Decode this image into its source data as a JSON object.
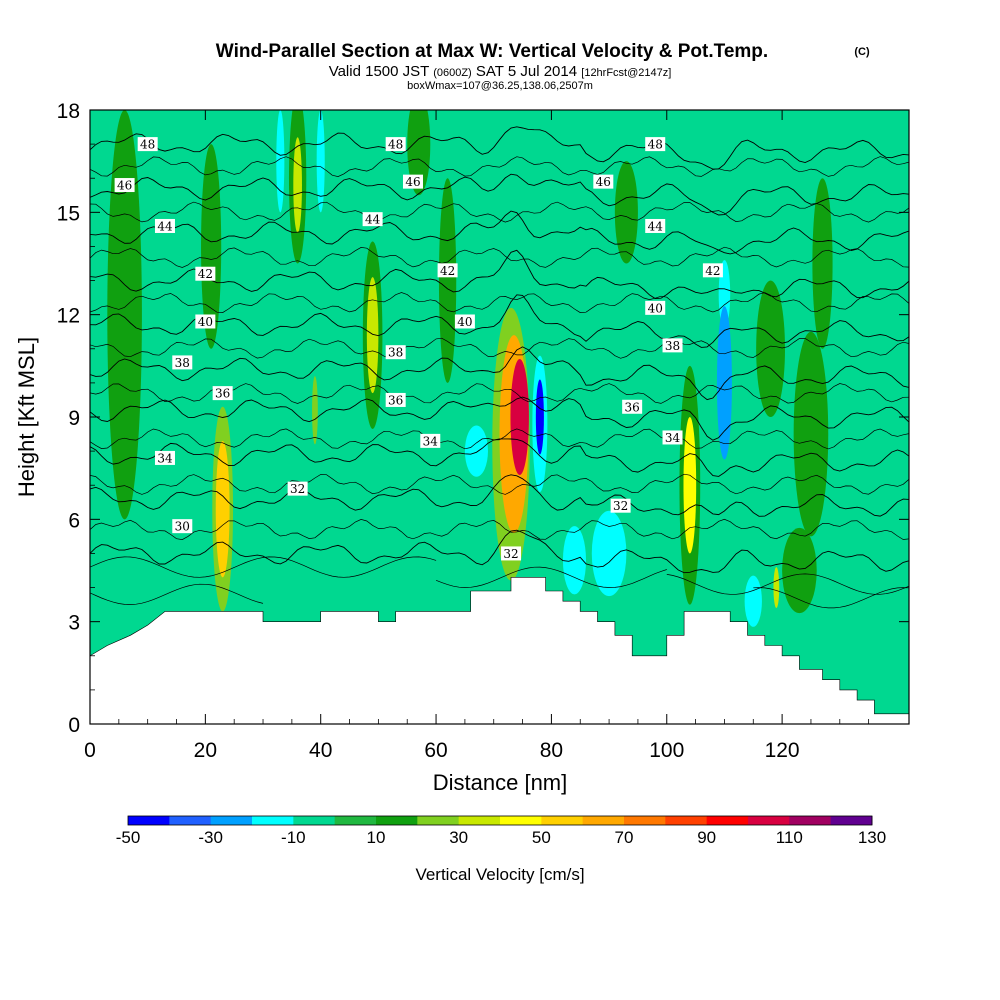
{
  "header": {
    "title": "Wind-Parallel Section at Max W: Vertical Velocity & Pot.Temp.",
    "title_mark": "(C)",
    "subtitle_parts": [
      "Valid 1500 JST",
      "(0600Z)",
      "SAT 5 Jul 2014",
      "[12hrFcst@2147z]"
    ],
    "box_info": "boxWmax=107@36.25,138.06,2507m"
  },
  "chart_data": {
    "type": "heatmap",
    "xlabel": "Distance [nm]",
    "ylabel": "Height [Kft MSL]",
    "xlim": [
      0,
      142
    ],
    "ylim": [
      0,
      18
    ],
    "x_ticks": [
      0,
      20,
      40,
      60,
      80,
      100,
      120
    ],
    "y_ticks": [
      0,
      3,
      6,
      9,
      12,
      15,
      18
    ],
    "colorbar": {
      "label": "Vertical Velocity [cm/s]",
      "levels": [
        -50,
        -30,
        -10,
        10,
        30,
        50,
        70,
        90,
        110,
        130
      ],
      "colors": [
        "#0000ff",
        "#2060ff",
        "#00a0ff",
        "#00ffff",
        "#00d890",
        "#20b840",
        "#10a010",
        "#80d020",
        "#c8e800",
        "#ffff00",
        "#ffd000",
        "#ffa800",
        "#ff7800",
        "#ff4000",
        "#ff0000",
        "#d80040",
        "#a00060",
        "#600090"
      ]
    },
    "base_field_color": "#00d890",
    "terrain": [
      [
        0,
        2.0
      ],
      [
        3,
        2.3
      ],
      [
        7,
        2.6
      ],
      [
        10,
        2.9
      ],
      [
        13,
        3.3
      ],
      [
        30,
        3.3
      ],
      [
        30,
        3.0
      ],
      [
        40,
        3.0
      ],
      [
        40,
        3.3
      ],
      [
        50,
        3.3
      ],
      [
        50,
        3.0
      ],
      [
        53,
        3.0
      ],
      [
        53,
        3.3
      ],
      [
        66,
        3.3
      ],
      [
        66,
        3.9
      ],
      [
        73,
        3.9
      ],
      [
        73,
        4.3
      ],
      [
        79,
        4.3
      ],
      [
        79,
        3.9
      ],
      [
        82,
        3.9
      ],
      [
        82,
        3.6
      ],
      [
        85,
        3.6
      ],
      [
        85,
        3.3
      ],
      [
        88,
        3.3
      ],
      [
        88,
        3.0
      ],
      [
        91,
        3.0
      ],
      [
        91,
        2.6
      ],
      [
        94,
        2.6
      ],
      [
        94,
        2.0
      ],
      [
        100,
        2.0
      ],
      [
        100,
        2.6
      ],
      [
        103,
        2.6
      ],
      [
        103,
        3.3
      ],
      [
        111,
        3.3
      ],
      [
        111,
        3.0
      ],
      [
        114,
        3.0
      ],
      [
        114,
        2.6
      ],
      [
        117,
        2.6
      ],
      [
        117,
        2.3
      ],
      [
        120,
        2.3
      ],
      [
        120,
        2.0
      ],
      [
        123,
        2.0
      ],
      [
        123,
        1.6
      ],
      [
        127,
        1.6
      ],
      [
        127,
        1.3
      ],
      [
        130,
        1.3
      ],
      [
        130,
        1.0
      ],
      [
        133,
        1.0
      ],
      [
        133,
        0.7
      ],
      [
        136,
        0.7
      ],
      [
        136,
        0.3
      ],
      [
        142,
        0.3
      ]
    ],
    "w_features": [
      {
        "x": 74.5,
        "y": 9.0,
        "w": 3.2,
        "h": 3.4,
        "v": 107
      },
      {
        "x": 73.5,
        "y": 8.5,
        "w": 5.0,
        "h": 5.8,
        "v": 60
      },
      {
        "x": 73.0,
        "y": 8.2,
        "w": 6.5,
        "h": 8.0,
        "v": 25
      },
      {
        "x": 78.0,
        "y": 9.0,
        "w": 1.4,
        "h": 2.2,
        "v": -45
      },
      {
        "x": 78.0,
        "y": 8.8,
        "w": 2.6,
        "h": 4.0,
        "v": -20
      },
      {
        "x": 23.0,
        "y": 6.3,
        "w": 2.4,
        "h": 4.0,
        "v": 55
      },
      {
        "x": 23.0,
        "y": 6.3,
        "w": 3.6,
        "h": 6.0,
        "v": 20
      },
      {
        "x": 104.0,
        "y": 7.0,
        "w": 2.2,
        "h": 4.0,
        "v": 45
      },
      {
        "x": 104.0,
        "y": 7.0,
        "w": 3.6,
        "h": 7.0,
        "v": 18
      },
      {
        "x": 49.0,
        "y": 11.4,
        "w": 2.0,
        "h": 3.4,
        "v": 35
      },
      {
        "x": 49.0,
        "y": 11.4,
        "w": 3.4,
        "h": 5.5,
        "v": 12
      },
      {
        "x": 36.0,
        "y": 15.8,
        "w": 1.5,
        "h": 2.8,
        "v": 30
      },
      {
        "x": 36.0,
        "y": 16.0,
        "w": 3.0,
        "h": 5.0,
        "v": 12
      },
      {
        "x": 110.0,
        "y": 10.0,
        "w": 2.6,
        "h": 4.5,
        "v": -30
      },
      {
        "x": 110.0,
        "y": 12.6,
        "w": 2.0,
        "h": 2.0,
        "v": -15
      },
      {
        "x": 33.0,
        "y": 16.5,
        "w": 1.4,
        "h": 3.0,
        "v": -15
      },
      {
        "x": 40.0,
        "y": 16.5,
        "w": 1.4,
        "h": 3.0,
        "v": -15
      },
      {
        "x": 90.0,
        "y": 5.0,
        "w": 6.0,
        "h": 2.5,
        "v": -16
      },
      {
        "x": 84.0,
        "y": 4.8,
        "w": 4.0,
        "h": 2.0,
        "v": -14
      },
      {
        "x": 67.0,
        "y": 8.0,
        "w": 4.0,
        "h": 1.5,
        "v": -14
      },
      {
        "x": 115.0,
        "y": 3.6,
        "w": 3.0,
        "h": 1.5,
        "v": -14
      },
      {
        "x": 6.0,
        "y": 12.0,
        "w": 6.0,
        "h": 12.0,
        "v": 14
      },
      {
        "x": 57.0,
        "y": 17.0,
        "w": 4.0,
        "h": 3.0,
        "v": 14
      },
      {
        "x": 62.0,
        "y": 13.0,
        "w": 3.0,
        "h": 6.0,
        "v": 12
      },
      {
        "x": 127.0,
        "y": 13.5,
        "w": 3.5,
        "h": 5.0,
        "v": 14
      },
      {
        "x": 118.0,
        "y": 11.0,
        "w": 5.0,
        "h": 4.0,
        "v": 13
      },
      {
        "x": 123.0,
        "y": 4.5,
        "w": 6.0,
        "h": 2.5,
        "v": 14
      },
      {
        "x": 119.0,
        "y": 4.0,
        "w": 1.0,
        "h": 1.2,
        "v": 30
      },
      {
        "x": 39.0,
        "y": 9.2,
        "w": 1.0,
        "h": 2.0,
        "v": 28
      },
      {
        "x": 21.0,
        "y": 14.0,
        "w": 3.5,
        "h": 6.0,
        "v": 12
      },
      {
        "x": 125.0,
        "y": 8.5,
        "w": 6.0,
        "h": 6.0,
        "v": 12
      },
      {
        "x": 93.0,
        "y": 15.0,
        "w": 4.0,
        "h": 3.0,
        "v": 12
      }
    ],
    "theta_contours": [
      {
        "value": 30,
        "base": 5.0
      },
      {
        "value": 32,
        "base": 6.6
      },
      {
        "value": 34,
        "base": 7.9
      },
      {
        "value": 36,
        "base": 9.2
      },
      {
        "value": 38,
        "base": 10.4
      },
      {
        "value": 40,
        "base": 11.7
      },
      {
        "value": 42,
        "base": 13.0
      },
      {
        "value": 44,
        "base": 14.4
      },
      {
        "value": 46,
        "base": 15.7
      },
      {
        "value": 48,
        "base": 17.0
      }
    ],
    "contour_labels": [
      {
        "text": "48",
        "x": 10,
        "y": 17.0
      },
      {
        "text": "48",
        "x": 53,
        "y": 17.0
      },
      {
        "text": "48",
        "x": 98,
        "y": 17.0
      },
      {
        "text": "46",
        "x": 6,
        "y": 15.8
      },
      {
        "text": "46",
        "x": 56,
        "y": 15.9
      },
      {
        "text": "46",
        "x": 89,
        "y": 15.9
      },
      {
        "text": "44",
        "x": 13,
        "y": 14.6
      },
      {
        "text": "44",
        "x": 49,
        "y": 14.8
      },
      {
        "text": "44",
        "x": 98,
        "y": 14.6
      },
      {
        "text": "42",
        "x": 20,
        "y": 13.2
      },
      {
        "text": "42",
        "x": 62,
        "y": 13.3
      },
      {
        "text": "42",
        "x": 108,
        "y": 13.3
      },
      {
        "text": "40",
        "x": 20,
        "y": 11.8
      },
      {
        "text": "40",
        "x": 65,
        "y": 11.8
      },
      {
        "text": "40",
        "x": 98,
        "y": 12.2
      },
      {
        "text": "38",
        "x": 16,
        "y": 10.6
      },
      {
        "text": "38",
        "x": 53,
        "y": 10.9
      },
      {
        "text": "38",
        "x": 101,
        "y": 11.1
      },
      {
        "text": "36",
        "x": 23,
        "y": 9.7
      },
      {
        "text": "36",
        "x": 53,
        "y": 9.5
      },
      {
        "text": "36",
        "x": 94,
        "y": 9.3
      },
      {
        "text": "34",
        "x": 13,
        "y": 7.8
      },
      {
        "text": "34",
        "x": 59,
        "y": 8.3
      },
      {
        "text": "34",
        "x": 101,
        "y": 8.4
      },
      {
        "text": "32",
        "x": 36,
        "y": 6.9
      },
      {
        "text": "32",
        "x": 73,
        "y": 5.0
      },
      {
        "text": "32",
        "x": 92,
        "y": 6.4
      },
      {
        "text": "30",
        "x": 16,
        "y": 5.8
      }
    ]
  }
}
